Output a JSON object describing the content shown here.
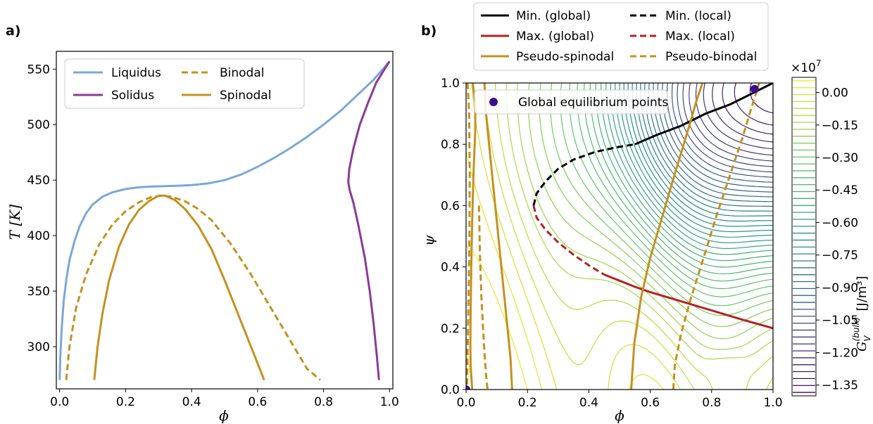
{
  "panels": [
    "a)",
    "b)"
  ],
  "chart_data": [
    {
      "type": "line",
      "panel": "a)",
      "xlabel": "ϕ",
      "ylabel": "T [K]",
      "xlim": [
        -0.01,
        1.01
      ],
      "ylim": [
        262,
        566
      ],
      "xticks": [
        "0.0",
        "0.2",
        "0.4",
        "0.6",
        "0.8",
        "1.0"
      ],
      "yticks": [
        "300",
        "350",
        "400",
        "450",
        "500",
        "550"
      ],
      "xtick_values": [
        0.0,
        0.2,
        0.4,
        0.6,
        0.8,
        1.0
      ],
      "ytick_values": [
        300,
        350,
        400,
        450,
        500,
        550
      ],
      "legend_position": "top-left",
      "series": [
        {
          "name": "Liquidus",
          "color": "#7ba7d7",
          "dash": "solid",
          "x": [
            0.0,
            0.002,
            0.006,
            0.012,
            0.02,
            0.03,
            0.045,
            0.06,
            0.08,
            0.1,
            0.13,
            0.16,
            0.2,
            0.24,
            0.28,
            0.32,
            0.36,
            0.4,
            0.45,
            0.5,
            0.55,
            0.6,
            0.65,
            0.7,
            0.75,
            0.8,
            0.85,
            0.9,
            0.95,
            0.98,
            1.0
          ],
          "y": [
            270,
            290,
            315,
            340,
            360,
            378,
            395,
            408,
            420,
            428,
            435,
            439,
            442,
            443.5,
            444.2,
            444.6,
            445,
            445.5,
            447,
            450,
            455,
            462,
            470,
            479,
            489,
            500,
            512,
            526,
            540,
            550,
            557
          ]
        },
        {
          "name": "Solidus",
          "color": "#8b3a96",
          "dash": "solid",
          "x": [
            0.968,
            0.962,
            0.952,
            0.94,
            0.925,
            0.905,
            0.89,
            0.88,
            0.875,
            0.878,
            0.89,
            0.91,
            0.935,
            0.96,
            0.985,
            1.0
          ],
          "y": [
            270,
            290,
            320,
            350,
            380,
            410,
            430,
            440,
            448,
            460,
            478,
            500,
            520,
            538,
            550,
            557
          ]
        },
        {
          "name": "Binodal",
          "color": "#c4911f",
          "dash": "dashed",
          "x": [
            0.02,
            0.03,
            0.05,
            0.08,
            0.12,
            0.16,
            0.2,
            0.24,
            0.28,
            0.31,
            0.34,
            0.38,
            0.42,
            0.46,
            0.52,
            0.58,
            0.64,
            0.7,
            0.75,
            0.79
          ],
          "y": [
            270,
            300,
            335,
            365,
            392,
            410,
            422,
            430,
            435,
            436,
            435,
            431,
            424,
            414,
            392,
            365,
            335,
            305,
            280,
            270
          ]
        },
        {
          "name": "Spinodal",
          "color": "#c4911f",
          "dash": "solid",
          "x": [
            0.105,
            0.115,
            0.13,
            0.15,
            0.18,
            0.21,
            0.24,
            0.27,
            0.3,
            0.32,
            0.35,
            0.38,
            0.42,
            0.46,
            0.5,
            0.54,
            0.58,
            0.62
          ],
          "y": [
            270,
            300,
            330,
            360,
            390,
            410,
            423,
            431,
            436,
            436,
            432,
            424,
            409,
            388,
            360,
            330,
            300,
            270
          ]
        }
      ]
    },
    {
      "type": "contour",
      "panel": "b)",
      "xlabel": "ϕ",
      "ylabel": "ψ",
      "xlim": [
        0.0,
        1.0
      ],
      "ylim": [
        0.0,
        1.0
      ],
      "xticks": [
        "0.0",
        "0.2",
        "0.4",
        "0.6",
        "0.8",
        "1.0"
      ],
      "yticks": [
        "0.0",
        "0.2",
        "0.4",
        "0.6",
        "0.8",
        "1.0"
      ],
      "xtick_values": [
        0.0,
        0.2,
        0.4,
        0.6,
        0.8,
        1.0
      ],
      "ytick_values": [
        0.0,
        0.2,
        0.4,
        0.6,
        0.8,
        1.0
      ],
      "legend_position": "above plot",
      "colorbar": {
        "label": "G_V^(bulk) [J/m³]",
        "label_main": "G",
        "label_sub": "V",
        "label_sup": "(bulk)",
        "label_unit": "[J/m³]",
        "multiplier": "×10",
        "multiplier_exp": "7",
        "ticks": [
          "0.00",
          "−0.15",
          "−0.30",
          "−0.45",
          "−0.60",
          "−0.75",
          "−0.90",
          "−1.05",
          "−1.20",
          "−1.35"
        ],
        "tick_values": [
          0.0,
          -0.15,
          -0.3,
          -0.45,
          -0.6,
          -0.75,
          -0.9,
          -1.05,
          -1.2,
          -1.35
        ],
        "range": [
          -1.4,
          0.07
        ],
        "colormap": "viridis"
      },
      "series": [
        {
          "name": "Min. (global)",
          "color": "#000000",
          "dash": "solid",
          "x": [
            0.55,
            0.62,
            0.7,
            0.78,
            0.86,
            0.93,
            1.0
          ],
          "y": [
            0.8,
            0.83,
            0.86,
            0.9,
            0.93,
            0.965,
            1.0
          ]
        },
        {
          "name": "Min. (local)",
          "color": "#000000",
          "dash": "dashed",
          "x": [
            0.22,
            0.23,
            0.26,
            0.3,
            0.35,
            0.42,
            0.49,
            0.55
          ],
          "y": [
            0.6,
            0.64,
            0.68,
            0.72,
            0.75,
            0.775,
            0.79,
            0.8
          ]
        },
        {
          "name": "Max. (global)",
          "color": "#b22222",
          "dash": "solid",
          "x": [
            0.45,
            0.5,
            0.55,
            0.6,
            0.7,
            0.8,
            0.9,
            1.0
          ],
          "y": [
            0.375,
            0.355,
            0.335,
            0.318,
            0.288,
            0.258,
            0.228,
            0.2
          ]
        },
        {
          "name": "Max. (local)",
          "color": "#b22222",
          "dash": "dashed",
          "x": [
            0.22,
            0.23,
            0.26,
            0.3,
            0.35,
            0.4,
            0.45
          ],
          "y": [
            0.6,
            0.56,
            0.52,
            0.48,
            0.44,
            0.405,
            0.375
          ]
        },
        {
          "name": "Pseudo-spinodal",
          "color": "#c4911f",
          "dash": "solid",
          "segments": [
            {
              "x": [
                0.022,
                0.03,
                0.03,
                0.024,
                0.02,
                0.017,
                0.015,
                0.014,
                0.015,
                0.02
              ],
              "y": [
                1.0,
                0.93,
                0.85,
                0.7,
                0.55,
                0.4,
                0.25,
                0.15,
                0.08,
                0.0
              ]
            },
            {
              "x": [
                0.06,
                0.065,
                0.075,
                0.09,
                0.105,
                0.12,
                0.135,
                0.145,
                0.15
              ],
              "y": [
                1.0,
                0.9,
                0.8,
                0.65,
                0.5,
                0.35,
                0.2,
                0.1,
                0.0
              ]
            },
            {
              "x": [
                0.538,
                0.548,
                0.57,
                0.6,
                0.635,
                0.67,
                0.7,
                0.73,
                0.75,
                0.77
              ],
              "y": [
                0.0,
                0.15,
                0.3,
                0.43,
                0.55,
                0.67,
                0.77,
                0.87,
                0.94,
                1.0
              ]
            }
          ]
        },
        {
          "name": "Pseudo-binodal",
          "color": "#c4911f",
          "dash": "dashed",
          "segments": [
            {
              "x": [
                0.005,
                0.01,
                0.012,
                0.011,
                0.008,
                0.005,
                0.003
              ],
              "y": [
                1.0,
                0.9,
                0.7,
                0.5,
                0.3,
                0.12,
                0.0
              ]
            },
            {
              "x": [
                0.042,
                0.045,
                0.05,
                0.058,
                0.065,
                0.07
              ],
              "y": [
                0.6,
                0.45,
                0.3,
                0.15,
                0.05,
                0.0
              ]
            },
            {
              "x": [
                0.675,
                0.68,
                0.7,
                0.73,
                0.78,
                0.82,
                0.86,
                0.9,
                0.93,
                0.955
              ],
              "y": [
                0.0,
                0.08,
                0.18,
                0.29,
                0.45,
                0.58,
                0.7,
                0.82,
                0.92,
                1.0
              ]
            }
          ]
        },
        {
          "name": "Global equilibrium points",
          "type": "scatter",
          "color": "#3b0f8c",
          "x": [
            0.0,
            0.94
          ],
          "y": [
            0.0,
            0.98
          ]
        }
      ]
    }
  ]
}
